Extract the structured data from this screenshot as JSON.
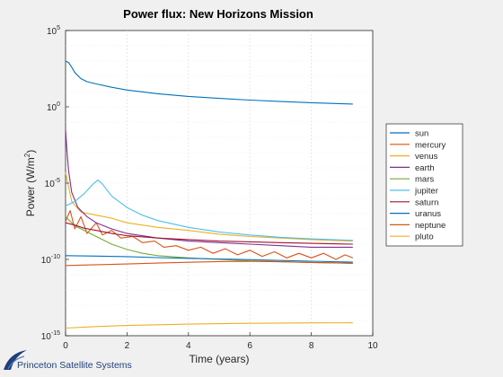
{
  "chart_data": {
    "type": "line",
    "title": "Power flux: New Horizons Mission",
    "xlabel": "Time (years)",
    "ylabel": "Power (W/m",
    "ylabel_sup": "2",
    "ylabel_close": ")",
    "yscale": "log",
    "xlim": [
      0,
      10
    ],
    "ylim_exp": [
      -15,
      5
    ],
    "x_ticks": [
      "0",
      "2",
      "4",
      "6",
      "8",
      "10"
    ],
    "y_ticks": [
      {
        "base": "10",
        "exp": "5",
        "value_exp": 5
      },
      {
        "base": "10",
        "exp": "0",
        "value_exp": 0
      },
      {
        "base": "10",
        "exp": "-5",
        "value_exp": -5
      },
      {
        "base": "10",
        "exp": "-10",
        "value_exp": -10
      },
      {
        "base": "10",
        "exp": "-15",
        "value_exp": -15
      }
    ],
    "grid": true,
    "legend_position": "right",
    "series": [
      {
        "name": "sun",
        "color": "#0072bd",
        "points": [
          [
            0,
            3
          ],
          [
            0.1,
            2.9
          ],
          [
            0.2,
            2.6
          ],
          [
            0.3,
            2.25
          ],
          [
            0.5,
            1.85
          ],
          [
            0.7,
            1.65
          ],
          [
            1,
            1.5
          ],
          [
            1.5,
            1.28
          ],
          [
            2,
            1.1
          ],
          [
            3,
            0.86
          ],
          [
            4,
            0.68
          ],
          [
            5,
            0.55
          ],
          [
            6,
            0.44
          ],
          [
            7,
            0.35
          ],
          [
            8,
            0.27
          ],
          [
            9,
            0.2
          ],
          [
            9.35,
            0.18
          ]
        ]
      },
      {
        "name": "mercury",
        "color": "#d95319",
        "points": [
          [
            0,
            -7.5
          ],
          [
            0.15,
            -6.8
          ],
          [
            0.3,
            -8
          ],
          [
            0.5,
            -7.2
          ],
          [
            0.7,
            -8.3
          ],
          [
            1,
            -7.6
          ],
          [
            1.2,
            -8.4
          ],
          [
            1.5,
            -8.1
          ],
          [
            1.8,
            -8.6
          ],
          [
            2.2,
            -8.5
          ],
          [
            2.5,
            -8.9
          ],
          [
            2.9,
            -8.8
          ],
          [
            3.2,
            -9.2
          ],
          [
            3.6,
            -9.1
          ],
          [
            4,
            -9.4
          ],
          [
            4.4,
            -9.2
          ],
          [
            4.8,
            -9.6
          ],
          [
            5.2,
            -9.3
          ],
          [
            5.6,
            -9.7
          ],
          [
            6,
            -9.4
          ],
          [
            6.4,
            -9.8
          ],
          [
            6.8,
            -9.5
          ],
          [
            7.2,
            -9.9
          ],
          [
            7.6,
            -9.6
          ],
          [
            8,
            -9.9
          ],
          [
            8.4,
            -9.6
          ],
          [
            8.8,
            -10
          ],
          [
            9.1,
            -9.7
          ],
          [
            9.35,
            -9.9
          ]
        ]
      },
      {
        "name": "venus",
        "color": "#edb120",
        "points": [
          [
            0,
            -4.3
          ],
          [
            0.2,
            -6.2
          ],
          [
            0.5,
            -6.9
          ],
          [
            1,
            -7.1
          ],
          [
            1.5,
            -7.3
          ],
          [
            2,
            -7.6
          ],
          [
            3,
            -7.9
          ],
          [
            4,
            -8.1
          ],
          [
            5,
            -8.35
          ],
          [
            6,
            -8.5
          ],
          [
            7,
            -8.6
          ],
          [
            8,
            -8.7
          ],
          [
            9.35,
            -8.8
          ]
        ]
      },
      {
        "name": "earth",
        "color": "#7e2f8e",
        "points": [
          [
            0,
            -1.5
          ],
          [
            0.05,
            -3
          ],
          [
            0.1,
            -4.2
          ],
          [
            0.2,
            -5.6
          ],
          [
            0.4,
            -6.6
          ],
          [
            0.7,
            -7.2
          ],
          [
            1,
            -7.6
          ],
          [
            1.5,
            -8
          ],
          [
            2,
            -8.3
          ],
          [
            3,
            -8.6
          ],
          [
            4,
            -8.8
          ],
          [
            5,
            -8.9
          ],
          [
            6,
            -9
          ],
          [
            7,
            -9.1
          ],
          [
            8,
            -9.2
          ],
          [
            9.35,
            -9.2
          ]
        ]
      },
      {
        "name": "mars",
        "color": "#77ac30",
        "points": [
          [
            0,
            -7.2
          ],
          [
            0.3,
            -7.8
          ],
          [
            0.7,
            -8.2
          ],
          [
            1,
            -8.5
          ],
          [
            1.5,
            -9
          ],
          [
            2,
            -9.35
          ],
          [
            2.5,
            -9.6
          ],
          [
            3,
            -9.75
          ],
          [
            4,
            -9.9
          ],
          [
            5,
            -10
          ],
          [
            6,
            -10.1
          ],
          [
            7,
            -10.15
          ],
          [
            8,
            -10.2
          ],
          [
            9.35,
            -10.25
          ]
        ]
      },
      {
        "name": "jupiter",
        "color": "#4dbeee",
        "points": [
          [
            0,
            -6.5
          ],
          [
            0.3,
            -6.2
          ],
          [
            0.6,
            -5.7
          ],
          [
            0.9,
            -5.05
          ],
          [
            1.05,
            -4.8
          ],
          [
            1.2,
            -5.05
          ],
          [
            1.5,
            -5.85
          ],
          [
            2,
            -6.6
          ],
          [
            2.5,
            -7.1
          ],
          [
            3,
            -7.45
          ],
          [
            4,
            -7.9
          ],
          [
            5,
            -8.2
          ],
          [
            6,
            -8.4
          ],
          [
            7,
            -8.55
          ],
          [
            8,
            -8.65
          ],
          [
            9.35,
            -8.75
          ]
        ]
      },
      {
        "name": "saturn",
        "color": "#a2142f",
        "points": [
          [
            0,
            -7.6
          ],
          [
            0.3,
            -7.75
          ],
          [
            0.6,
            -7.95
          ],
          [
            1,
            -8.1
          ],
          [
            1.5,
            -8.3
          ],
          [
            2,
            -8.45
          ],
          [
            3,
            -8.6
          ],
          [
            4,
            -8.7
          ],
          [
            5,
            -8.8
          ],
          [
            6,
            -8.85
          ],
          [
            7,
            -8.9
          ],
          [
            8,
            -8.95
          ],
          [
            9.35,
            -9
          ]
        ]
      },
      {
        "name": "uranus",
        "color": "#0072bd",
        "points": [
          [
            0,
            -9.75
          ],
          [
            1,
            -9.78
          ],
          [
            2,
            -9.82
          ],
          [
            3,
            -9.88
          ],
          [
            4,
            -9.93
          ],
          [
            5,
            -9.97
          ],
          [
            6,
            -10.02
          ],
          [
            7,
            -10.07
          ],
          [
            8,
            -10.12
          ],
          [
            9.35,
            -10.18
          ]
        ]
      },
      {
        "name": "neptune",
        "color": "#d95319",
        "points": [
          [
            0,
            -10.4
          ],
          [
            1,
            -10.35
          ],
          [
            2,
            -10.3
          ],
          [
            3,
            -10.24
          ],
          [
            4,
            -10.19
          ],
          [
            5,
            -10.14
          ],
          [
            6,
            -10.13
          ],
          [
            7,
            -10.15
          ],
          [
            8,
            -10.2
          ],
          [
            9.35,
            -10.25
          ]
        ]
      },
      {
        "name": "pluto",
        "color": "#edb120",
        "points": [
          [
            0,
            -14.5
          ],
          [
            1,
            -14.4
          ],
          [
            2,
            -14.33
          ],
          [
            3,
            -14.28
          ],
          [
            4,
            -14.24
          ],
          [
            5,
            -14.21
          ],
          [
            6,
            -14.19
          ],
          [
            7,
            -14.17
          ],
          [
            8,
            -14.16
          ],
          [
            9.35,
            -14.15
          ]
        ]
      }
    ]
  },
  "logo": {
    "text": "Princeton Satellite Systems",
    "color": "#1f3f7a"
  }
}
